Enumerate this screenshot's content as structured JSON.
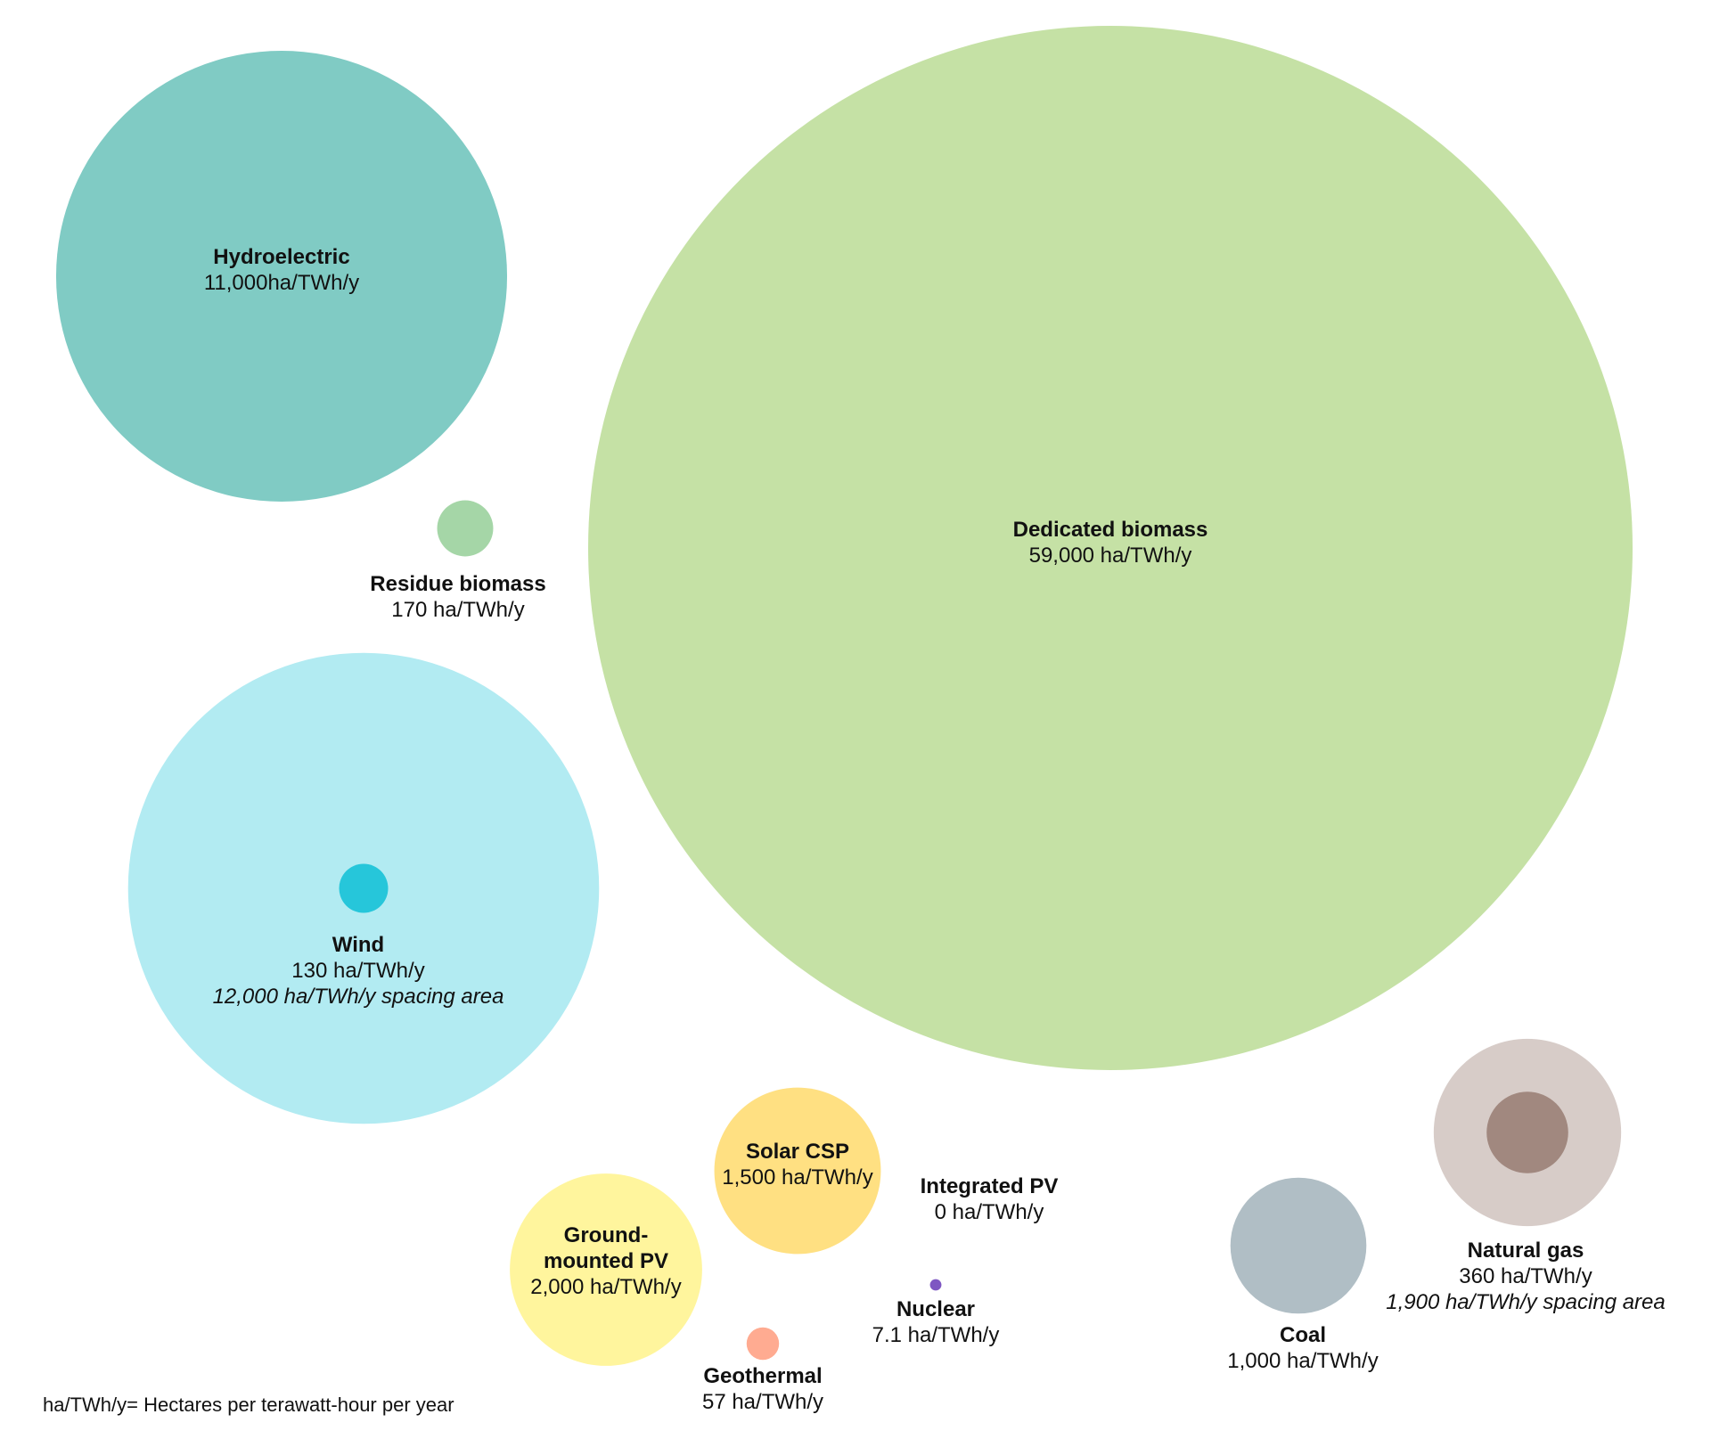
{
  "chart_data": {
    "type": "bubble",
    "title": "",
    "unit": "ha/TWh/y",
    "footnote": "ha/TWh/y= Hectares per terawatt-hour per year",
    "items": [
      {
        "key": "hydro",
        "name": "Hydroelectric",
        "value": 11000,
        "value_label": "11,000ha/TWh/y",
        "color": "#80cbc4"
      },
      {
        "key": "dedicated",
        "name": "Dedicated biomass",
        "value": 59000,
        "value_label": "59,000 ha/TWh/y",
        "color": "#c5e1a5"
      },
      {
        "key": "residue",
        "name": "Residue biomass",
        "value": 170,
        "value_label": "170 ha/TWh/y",
        "color": "#a5d6a7"
      },
      {
        "key": "wind",
        "name": "Wind",
        "value": 130,
        "value_label": "130 ha/TWh/y",
        "spacing_value": 12000,
        "spacing_label": "12,000 ha/TWh/y spacing area",
        "color": "#26c6da",
        "spacing_color": "#b2ebf2"
      },
      {
        "key": "solarcsp",
        "name": "Solar CSP",
        "value": 1500,
        "value_label": "1,500 ha/TWh/y",
        "color": "#ffe082"
      },
      {
        "key": "groundpv",
        "name": "Ground-mounted PV",
        "name_lines": [
          "Ground-",
          "mounted PV"
        ],
        "value": 2000,
        "value_label": "2,000 ha/TWh/y",
        "color": "#fff59d"
      },
      {
        "key": "integratedpv",
        "name": "Integrated PV",
        "value": 0,
        "value_label": "0 ha/TWh/y",
        "color": "#ffffff"
      },
      {
        "key": "geothermal",
        "name": "Geothermal",
        "value": 57,
        "value_label": "57 ha/TWh/y",
        "color": "#ffab91"
      },
      {
        "key": "nuclear",
        "name": "Nuclear",
        "value": 7.1,
        "value_label": "7.1 ha/TWh/y",
        "color": "#7e57c2"
      },
      {
        "key": "coal",
        "name": "Coal",
        "value": 1000,
        "value_label": "1,000 ha/TWh/y",
        "color": "#b0bec5"
      },
      {
        "key": "gas",
        "name": "Natural gas",
        "value": 360,
        "value_label": "360 ha/TWh/y",
        "spacing_value": 1900,
        "spacing_label": "1,900 ha/TWh/y spacing area",
        "color": "#a1887f",
        "spacing_color": "#d7ccc8"
      }
    ]
  }
}
